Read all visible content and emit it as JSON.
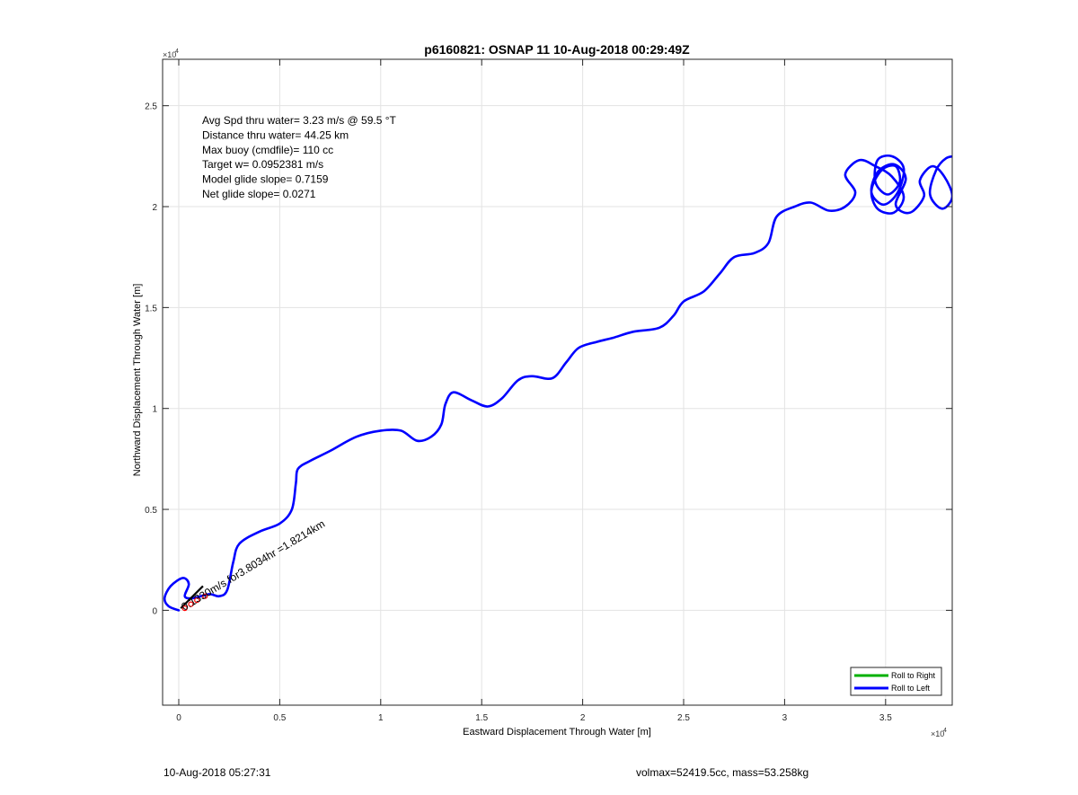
{
  "chart_data": {
    "type": "line",
    "title": "p6160821: OSNAP 11 10-Aug-2018 00:29:49Z",
    "xlabel": "Eastward Displacement Through Water [m]",
    "ylabel": "Northward Displacement Through Water [m]",
    "x_exponent_label": "×10",
    "x_exponent_power": "4",
    "y_exponent_label": "×10",
    "y_exponent_power": "4",
    "xlim": [
      -800,
      38300
    ],
    "ylim": [
      -4700,
      27300
    ],
    "x_ticks": [
      0,
      5000,
      10000,
      15000,
      20000,
      25000,
      30000,
      35000
    ],
    "x_tick_labels": [
      "0",
      "0.5",
      "1",
      "1.5",
      "2",
      "2.5",
      "3",
      "3.5"
    ],
    "y_ticks": [
      0,
      5000,
      10000,
      15000,
      20000,
      25000
    ],
    "y_tick_labels": [
      "0",
      "0.5",
      "1",
      "1.5",
      "2",
      "2.5"
    ],
    "grid": true,
    "legend_position": "bottom-right",
    "legend": [
      {
        "label": "Roll to Right",
        "color": "#00b000"
      },
      {
        "label": "Roll to Left",
        "color": "#0000ff"
      }
    ],
    "annotations": [
      "Avg Spd thru water=  3.23 m/s @  59.5 °T",
      "Distance thru water= 44.25 km",
      "Max buoy (cmdfile)= 110 cc",
      "Target w= 0.0952381 m/s",
      "Model glide slope= 0.7159",
      "Net glide slope= 0.0271"
    ],
    "current_label": "0.1330m/s for3.8034hr =1.8214km",
    "series": [
      {
        "name": "Roll to Left",
        "color": "#0000ff",
        "points": [
          [
            0,
            0
          ],
          [
            -500,
            200
          ],
          [
            -700,
            600
          ],
          [
            -400,
            1200
          ],
          [
            200,
            1600
          ],
          [
            500,
            1300
          ],
          [
            300,
            700
          ],
          [
            700,
            600
          ],
          [
            1500,
            800
          ],
          [
            2000,
            700
          ],
          [
            2400,
            1000
          ],
          [
            2700,
            2400
          ],
          [
            3000,
            3300
          ],
          [
            4000,
            3900
          ],
          [
            5000,
            4300
          ],
          [
            5600,
            5000
          ],
          [
            5800,
            6300
          ],
          [
            5900,
            7000
          ],
          [
            6500,
            7400
          ],
          [
            7500,
            7900
          ],
          [
            8800,
            8600
          ],
          [
            10000,
            8900
          ],
          [
            11000,
            8900
          ],
          [
            11800,
            8400
          ],
          [
            12500,
            8600
          ],
          [
            13000,
            9200
          ],
          [
            13200,
            10200
          ],
          [
            13600,
            10800
          ],
          [
            14500,
            10400
          ],
          [
            15300,
            10100
          ],
          [
            16000,
            10500
          ],
          [
            16800,
            11400
          ],
          [
            17500,
            11600
          ],
          [
            18500,
            11500
          ],
          [
            19200,
            12300
          ],
          [
            19800,
            13000
          ],
          [
            20700,
            13300
          ],
          [
            21500,
            13500
          ],
          [
            22500,
            13800
          ],
          [
            23800,
            14000
          ],
          [
            24500,
            14600
          ],
          [
            25000,
            15300
          ],
          [
            26000,
            15800
          ],
          [
            26800,
            16700
          ],
          [
            27500,
            17500
          ],
          [
            28500,
            17700
          ],
          [
            29200,
            18200
          ],
          [
            29600,
            19500
          ],
          [
            30500,
            20000
          ],
          [
            31300,
            20200
          ],
          [
            32200,
            19800
          ],
          [
            33000,
            20000
          ],
          [
            33500,
            20700
          ],
          [
            33000,
            21600
          ],
          [
            33700,
            22300
          ],
          [
            34500,
            22000
          ],
          [
            35300,
            21500
          ],
          [
            35900,
            20500
          ],
          [
            35400,
            19700
          ],
          [
            34600,
            19900
          ],
          [
            34300,
            20800
          ],
          [
            34800,
            21800
          ],
          [
            35500,
            22000
          ],
          [
            35700,
            21200
          ],
          [
            35100,
            20600
          ],
          [
            34500,
            21200
          ],
          [
            34600,
            22300
          ],
          [
            35300,
            22500
          ],
          [
            35900,
            21900
          ],
          [
            35600,
            20700
          ],
          [
            34900,
            20100
          ],
          [
            34300,
            20700
          ],
          [
            34600,
            21700
          ],
          [
            35400,
            22100
          ],
          [
            36000,
            21400
          ],
          [
            35500,
            20100
          ],
          [
            36200,
            19700
          ],
          [
            36900,
            20500
          ],
          [
            36700,
            21300
          ],
          [
            37300,
            22000
          ],
          [
            37900,
            21500
          ],
          [
            38300,
            20500
          ],
          [
            37800,
            19900
          ],
          [
            37200,
            20600
          ],
          [
            37500,
            21800
          ],
          [
            38000,
            22400
          ],
          [
            38500,
            22500
          ]
        ]
      },
      {
        "name": "current-vector",
        "color": "#000000",
        "points": [
          [
            100,
            100
          ],
          [
            1200,
            1200
          ]
        ]
      },
      {
        "name": "dive-markers",
        "color": "#ff0000",
        "points": [
          [
            300,
            100
          ],
          [
            600,
            300
          ],
          [
            900,
            500
          ],
          [
            1300,
            700
          ]
        ]
      }
    ]
  },
  "footer": {
    "left": "10-Aug-2018 05:27:31",
    "right": "volmax=52419.5cc, mass=53.258kg"
  }
}
